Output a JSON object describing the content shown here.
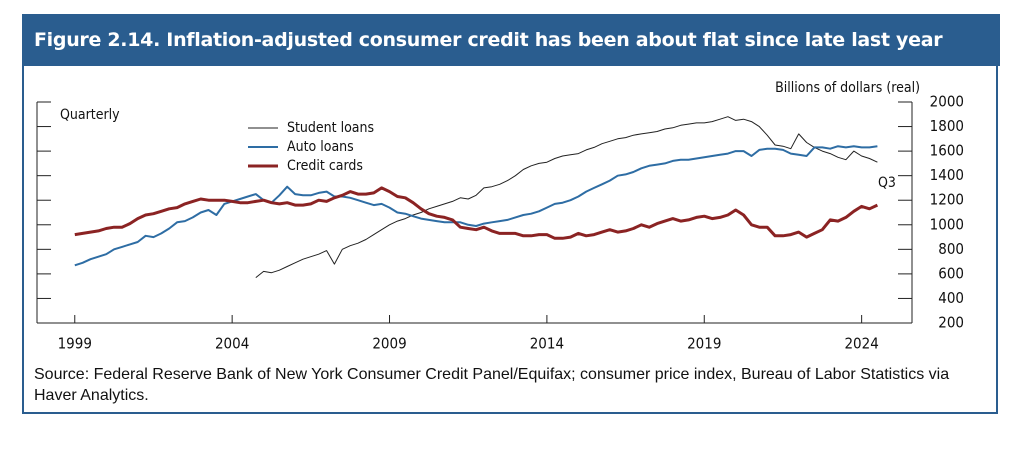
{
  "chart_data": {
    "type": "line",
    "title": "Figure 2.14. Inflation-adjusted consumer credit has been about flat since late last year",
    "y_label": "Billions of dollars (real)",
    "note": "Quarterly",
    "end_label": "Q3",
    "source": "Source: Federal Reserve Bank of New York Consumer Credit Panel/Equifax; consumer price index, Bureau of Labor Statistics via Haver Analytics.",
    "x": [
      1999,
      1999.25,
      1999.5,
      1999.75,
      2000,
      2000.25,
      2000.5,
      2000.75,
      2001,
      2001.25,
      2001.5,
      2001.75,
      2002,
      2002.25,
      2002.5,
      2002.75,
      2003,
      2003.25,
      2003.5,
      2003.75,
      2004,
      2004.25,
      2004.5,
      2004.75,
      2005,
      2005.25,
      2005.5,
      2005.75,
      2006,
      2006.25,
      2006.5,
      2006.75,
      2007,
      2007.25,
      2007.5,
      2007.75,
      2008,
      2008.25,
      2008.5,
      2008.75,
      2009,
      2009.25,
      2009.5,
      2009.75,
      2010,
      2010.25,
      2010.5,
      2010.75,
      2011,
      2011.25,
      2011.5,
      2011.75,
      2012,
      2012.25,
      2012.5,
      2012.75,
      2013,
      2013.25,
      2013.5,
      2013.75,
      2014,
      2014.25,
      2014.5,
      2014.75,
      2015,
      2015.25,
      2015.5,
      2015.75,
      2016,
      2016.25,
      2016.5,
      2016.75,
      2017,
      2017.25,
      2017.5,
      2017.75,
      2018,
      2018.25,
      2018.5,
      2018.75,
      2019,
      2019.25,
      2019.5,
      2019.75,
      2020,
      2020.25,
      2020.5,
      2020.75,
      2021,
      2021.25,
      2021.5,
      2021.75,
      2022,
      2022.25,
      2022.5,
      2022.75,
      2023,
      2023.25,
      2023.5,
      2023.75,
      2024,
      2024.25,
      2024.5
    ],
    "series": [
      {
        "name": "Student loans",
        "color": "#222222",
        "values": [
          null,
          null,
          null,
          null,
          null,
          null,
          null,
          null,
          null,
          null,
          null,
          null,
          null,
          null,
          null,
          null,
          null,
          null,
          null,
          null,
          null,
          null,
          null,
          570,
          620,
          610,
          630,
          660,
          690,
          720,
          740,
          760,
          790,
          680,
          800,
          830,
          850,
          880,
          920,
          960,
          1000,
          1030,
          1050,
          1080,
          1100,
          1130,
          1150,
          1170,
          1190,
          1220,
          1210,
          1240,
          1300,
          1310,
          1330,
          1360,
          1400,
          1450,
          1480,
          1500,
          1510,
          1540,
          1560,
          1570,
          1580,
          1610,
          1630,
          1660,
          1680,
          1700,
          1710,
          1730,
          1740,
          1750,
          1760,
          1780,
          1790,
          1810,
          1820,
          1830,
          1830,
          1840,
          1860,
          1880,
          1850,
          1860,
          1840,
          1800,
          1730,
          1650,
          1640,
          1620,
          1740,
          1670,
          1630,
          1600,
          1580,
          1550,
          1530,
          1600,
          1560,
          1540,
          1510
        ]
      },
      {
        "name": "Auto loans",
        "color": "#2e6da4",
        "values": [
          670,
          690,
          720,
          740,
          760,
          800,
          820,
          840,
          860,
          910,
          900,
          930,
          970,
          1020,
          1030,
          1060,
          1100,
          1120,
          1080,
          1170,
          1190,
          1210,
          1230,
          1250,
          1200,
          1180,
          1240,
          1310,
          1250,
          1240,
          1240,
          1260,
          1270,
          1230,
          1230,
          1220,
          1200,
          1180,
          1160,
          1170,
          1140,
          1100,
          1090,
          1070,
          1050,
          1040,
          1030,
          1020,
          1020,
          1020,
          1000,
          990,
          1010,
          1020,
          1030,
          1040,
          1060,
          1080,
          1090,
          1110,
          1140,
          1170,
          1180,
          1200,
          1230,
          1270,
          1300,
          1330,
          1360,
          1400,
          1410,
          1430,
          1460,
          1480,
          1490,
          1500,
          1520,
          1530,
          1530,
          1540,
          1550,
          1560,
          1570,
          1580,
          1600,
          1600,
          1560,
          1610,
          1620,
          1620,
          1610,
          1580,
          1570,
          1560,
          1630,
          1630,
          1620,
          1640,
          1630,
          1640,
          1630,
          1630,
          1640
        ]
      },
      {
        "name": "Credit cards",
        "color": "#8b2323",
        "values": [
          920,
          930,
          940,
          950,
          970,
          980,
          980,
          1010,
          1050,
          1080,
          1090,
          1110,
          1130,
          1140,
          1170,
          1190,
          1210,
          1200,
          1200,
          1200,
          1190,
          1180,
          1180,
          1190,
          1200,
          1180,
          1170,
          1180,
          1160,
          1160,
          1170,
          1200,
          1190,
          1220,
          1240,
          1270,
          1250,
          1250,
          1260,
          1300,
          1270,
          1230,
          1220,
          1180,
          1130,
          1090,
          1070,
          1060,
          1040,
          980,
          970,
          960,
          980,
          950,
          930,
          930,
          930,
          910,
          910,
          920,
          920,
          890,
          890,
          900,
          930,
          910,
          920,
          940,
          960,
          940,
          950,
          970,
          1000,
          980,
          1010,
          1030,
          1050,
          1030,
          1040,
          1060,
          1070,
          1050,
          1060,
          1080,
          1120,
          1080,
          1000,
          980,
          980,
          910,
          910,
          920,
          940,
          900,
          930,
          960,
          1040,
          1030,
          1060,
          1110,
          1150,
          1130,
          1160
        ]
      }
    ],
    "xlim": [
      1997.8,
      2025.6
    ],
    "xticks": [
      1999,
      2004,
      2009,
      2014,
      2019,
      2024
    ],
    "ylim": [
      200,
      2000
    ],
    "yticks": [
      200,
      400,
      600,
      800,
      1000,
      1200,
      1400,
      1600,
      1800,
      2000
    ]
  }
}
